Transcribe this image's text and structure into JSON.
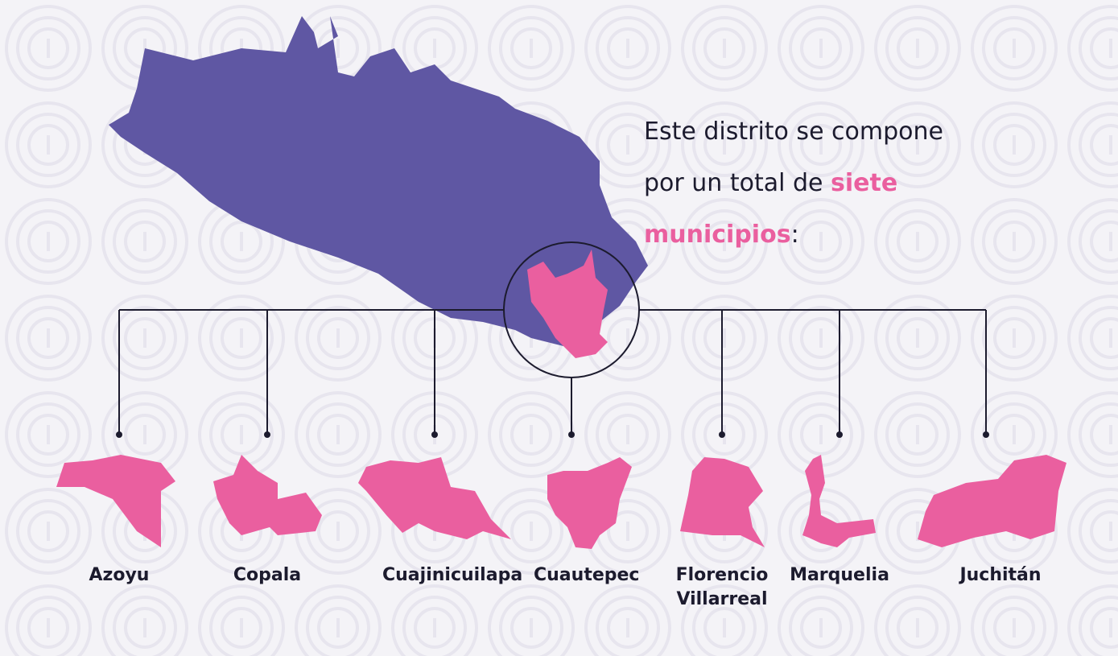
{
  "heading": {
    "before": "Este distrito se compone por un total de",
    "highlight": "siete municipios",
    "after": ":"
  },
  "municipalities": [
    "Azoyu",
    "Copala",
    "Cuajinicuilapa",
    "Cuautepec",
    "Florencio Villarreal",
    "Marquelia",
    "Juchitán"
  ]
}
